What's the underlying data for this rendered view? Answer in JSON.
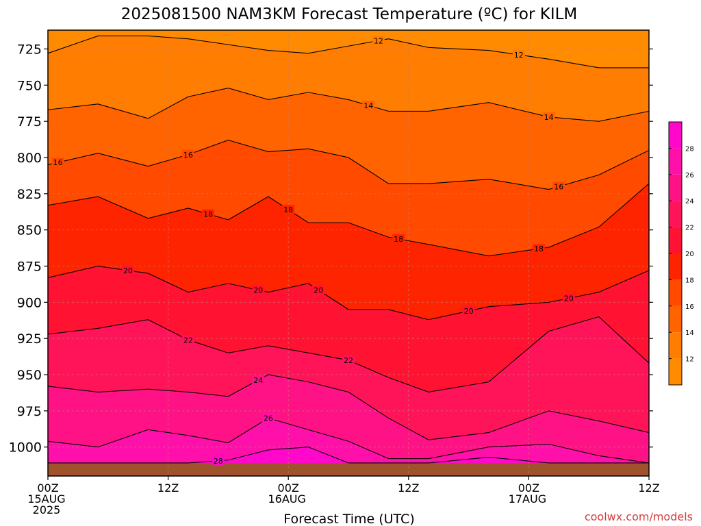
{
  "chart_data": {
    "type": "contour",
    "title": "2025081500 NAM3KM Forecast Temperature (ºC) for KILM",
    "xlabel": "Forecast Time (UTC)",
    "credit": "coolwx.com/models",
    "x_ticks": [
      {
        "hour": 0,
        "lines": [
          "00Z",
          "15AUG",
          "2025"
        ]
      },
      {
        "hour": 12,
        "lines": [
          "12Z"
        ]
      },
      {
        "hour": 24,
        "lines": [
          "00Z",
          "16AUG"
        ]
      },
      {
        "hour": 36,
        "lines": [
          "12Z"
        ]
      },
      {
        "hour": 48,
        "lines": [
          "00Z",
          "17AUG"
        ]
      },
      {
        "hour": 60,
        "lines": [
          "12Z"
        ]
      }
    ],
    "xlim_hours": [
      0,
      60
    ],
    "y_axis": {
      "unit": "hPa",
      "ticks": [
        725,
        750,
        775,
        800,
        825,
        850,
        875,
        900,
        925,
        950,
        975,
        1000
      ],
      "ylim": [
        712,
        1020
      ],
      "inverted": true
    },
    "surface_pressure_hpa": 1011,
    "contour_interval_c": 2,
    "colorbar": {
      "ticks": [
        12,
        14,
        16,
        18,
        20,
        22,
        24,
        26,
        28
      ],
      "bins": [
        {
          "range": [
            10,
            12
          ],
          "color": "#ff8c00"
        },
        {
          "range": [
            12,
            14
          ],
          "color": "#ff7d00"
        },
        {
          "range": [
            14,
            16
          ],
          "color": "#ff6400"
        },
        {
          "range": [
            16,
            18
          ],
          "color": "#ff4a00"
        },
        {
          "range": [
            18,
            20
          ],
          "color": "#ff2400"
        },
        {
          "range": [
            20,
            22
          ],
          "color": "#ff1232"
        },
        {
          "range": [
            22,
            24
          ],
          "color": "#ff145a"
        },
        {
          "range": [
            24,
            26
          ],
          "color": "#ff1286"
        },
        {
          "range": [
            26,
            28
          ],
          "color": "#ff10aa"
        },
        {
          "range": [
            28,
            30
          ],
          "color": "#ff08cc"
        }
      ]
    },
    "isotherms": [
      {
        "temp": 12,
        "pressure": [
          728,
          716,
          716,
          718,
          722,
          726,
          728,
          723,
          718,
          724,
          726,
          732,
          738,
          738
        ],
        "labels_at_hour": [
          33,
          47
        ]
      },
      {
        "temp": 14,
        "pressure": [
          767,
          763,
          773,
          758,
          752,
          760,
          755,
          760,
          768,
          768,
          762,
          772,
          775,
          768
        ],
        "labels_at_hour": [
          32,
          50
        ]
      },
      {
        "temp": 16,
        "pressure": [
          805,
          797,
          806,
          798,
          788,
          796,
          794,
          800,
          818,
          818,
          815,
          822,
          812,
          795
        ],
        "labels_at_hour": [
          1,
          14,
          51
        ]
      },
      {
        "temp": 18,
        "pressure": [
          833,
          827,
          842,
          835,
          843,
          827,
          845,
          845,
          855,
          860,
          868,
          862,
          848,
          818
        ],
        "labels_at_hour": [
          16,
          24,
          35,
          49
        ]
      },
      {
        "temp": 20,
        "pressure": [
          883,
          875,
          880,
          893,
          887,
          893,
          887,
          905,
          905,
          912,
          903,
          900,
          893,
          878
        ],
        "labels_at_hour": [
          8,
          21,
          27,
          42,
          52
        ]
      },
      {
        "temp": 22,
        "pressure": [
          922,
          918,
          912,
          926,
          935,
          930,
          935,
          940,
          952,
          962,
          955,
          920,
          910,
          942
        ],
        "labels_at_hour": [
          14,
          30
        ]
      },
      {
        "temp": 24,
        "pressure": [
          958,
          962,
          960,
          962,
          965,
          950,
          955,
          962,
          980,
          995,
          990,
          975,
          982,
          990
        ],
        "labels_at_hour": [
          21
        ]
      },
      {
        "temp": 26,
        "pressure": [
          996,
          1000,
          988,
          992,
          997,
          980,
          988,
          996,
          1008,
          1008,
          1000,
          998,
          1006,
          1011
        ],
        "labels_at_hour": [
          22
        ]
      },
      {
        "temp": 28,
        "pressure": [
          1011,
          1011,
          1011,
          1011,
          1009,
          1002,
          1000,
          1011,
          1011,
          1011,
          1007,
          1011,
          1011,
          1011
        ],
        "labels_at_hour": [
          17
        ]
      }
    ],
    "isotherm_hours": [
      0,
      5,
      10,
      14,
      18,
      22,
      26,
      30,
      34,
      38,
      44,
      50,
      55,
      60
    ]
  }
}
